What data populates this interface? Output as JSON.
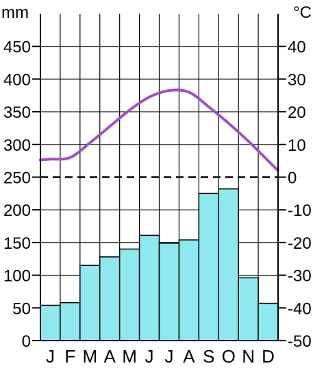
{
  "chart_data": {
    "type": "climate-diagram",
    "categories": [
      "J",
      "F",
      "M",
      "A",
      "M",
      "J",
      "J",
      "A",
      "S",
      "O",
      "N",
      "D"
    ],
    "series": [
      {
        "type": "bar",
        "axis": "left",
        "values": [
          54,
          58,
          115,
          128,
          140,
          161,
          149,
          154,
          225,
          232,
          96,
          57
        ],
        "color": "#8ee8ee"
      },
      {
        "type": "line",
        "axis": "right",
        "values": [
          5.5,
          6,
          10.5,
          15.5,
          20.5,
          24.5,
          26.5,
          26,
          21.5,
          16.5,
          11,
          5
        ],
        "color": "#a04fc5"
      }
    ],
    "left_axis": {
      "unit": "mm",
      "ylim": [
        0,
        500
      ],
      "ticks": [
        0,
        50,
        100,
        150,
        200,
        250,
        300,
        350,
        400,
        450
      ]
    },
    "right_axis": {
      "unit": "°C",
      "ylim": [
        -50,
        50
      ],
      "ticks": [
        40,
        30,
        20,
        10,
        0,
        -10,
        -20,
        -30,
        -40,
        -50
      ]
    },
    "zero_line": {
      "value": 250,
      "style": "dashed"
    },
    "grid": true
  }
}
